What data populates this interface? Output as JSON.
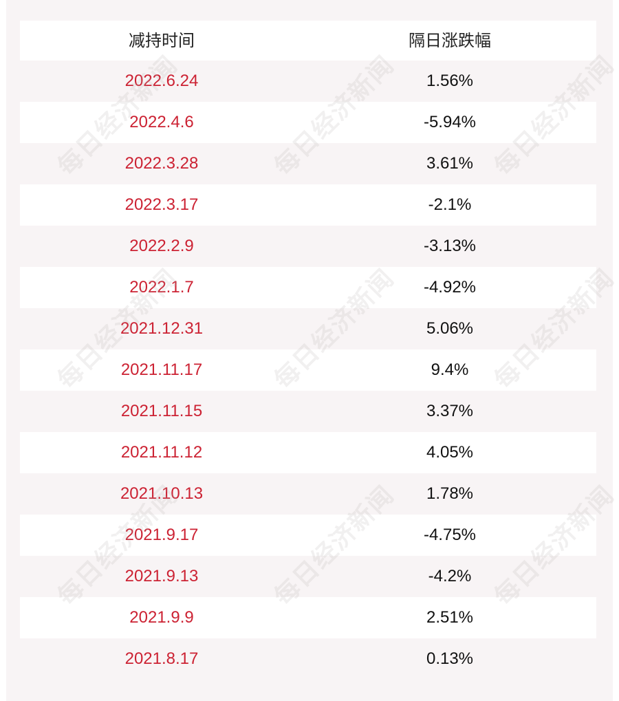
{
  "table": {
    "headers": [
      "减持时间",
      "隔日涨跌幅"
    ],
    "rows": [
      {
        "date": "2022.6.24",
        "change": "1.56%"
      },
      {
        "date": "2022.4.6",
        "change": "-5.94%"
      },
      {
        "date": "2022.3.28",
        "change": "3.61%"
      },
      {
        "date": "2022.3.17",
        "change": "-2.1%"
      },
      {
        "date": "2022.2.9",
        "change": "-3.13%"
      },
      {
        "date": "2022.1.7",
        "change": "-4.92%"
      },
      {
        "date": "2021.12.31",
        "change": "5.06%"
      },
      {
        "date": "2021.11.17",
        "change": "9.4%"
      },
      {
        "date": "2021.11.15",
        "change": "3.37%"
      },
      {
        "date": "2021.11.12",
        "change": "4.05%"
      },
      {
        "date": "2021.10.13",
        "change": "1.78%"
      },
      {
        "date": "2021.9.17",
        "change": "-4.75%"
      },
      {
        "date": "2021.9.13",
        "change": "-4.2%"
      },
      {
        "date": "2021.9.9",
        "change": "2.51%"
      },
      {
        "date": "2021.8.17",
        "change": "0.13%"
      }
    ]
  },
  "watermark": {
    "text": "每日经济新闻"
  },
  "colors": {
    "date_text": "#cc2233",
    "change_text": "#111111",
    "background": "#f8f4f5",
    "alt_row": "#ffffff"
  }
}
